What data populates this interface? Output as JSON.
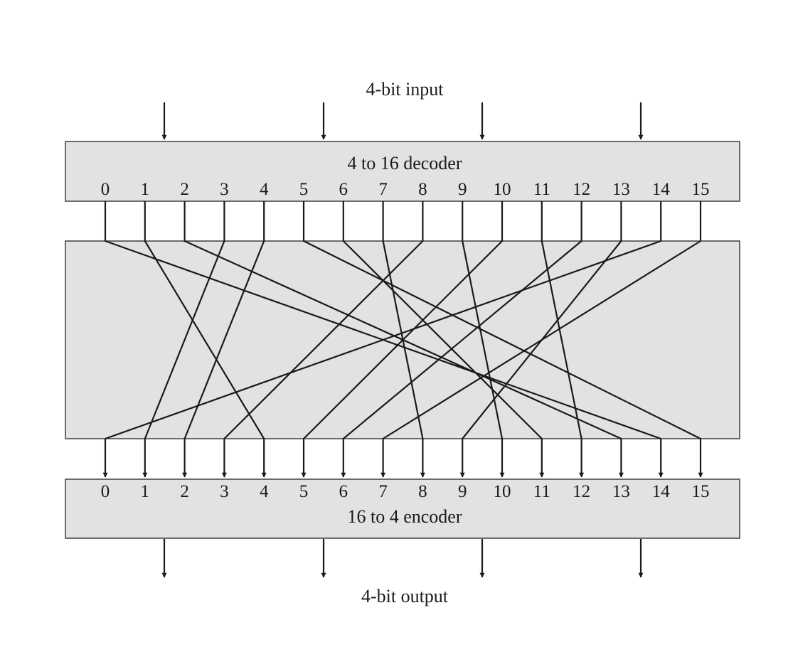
{
  "input_label": "4-bit input",
  "output_label": "4-bit output",
  "decoder": {
    "title": "4 to 16 decoder"
  },
  "encoder": {
    "title": "16 to 4 encoder"
  },
  "decoder_outputs": [
    "0",
    "1",
    "2",
    "3",
    "4",
    "5",
    "6",
    "7",
    "8",
    "9",
    "10",
    "11",
    "12",
    "13",
    "14",
    "15"
  ],
  "encoder_inputs": [
    "0",
    "1",
    "2",
    "3",
    "4",
    "5",
    "6",
    "7",
    "8",
    "9",
    "10",
    "11",
    "12",
    "13",
    "14",
    "15"
  ],
  "mapping": [
    {
      "from": 0,
      "to": 14
    },
    {
      "from": 1,
      "to": 4
    },
    {
      "from": 2,
      "to": 13
    },
    {
      "from": 3,
      "to": 1
    },
    {
      "from": 4,
      "to": 2
    },
    {
      "from": 5,
      "to": 15
    },
    {
      "from": 6,
      "to": 11
    },
    {
      "from": 7,
      "to": 8
    },
    {
      "from": 8,
      "to": 3
    },
    {
      "from": 9,
      "to": 10
    },
    {
      "from": 10,
      "to": 5
    },
    {
      "from": 11,
      "to": 12
    },
    {
      "from": 12,
      "to": 6
    },
    {
      "from": 13,
      "to": 9
    },
    {
      "from": 14,
      "to": 0
    },
    {
      "from": 15,
      "to": 7
    }
  ]
}
